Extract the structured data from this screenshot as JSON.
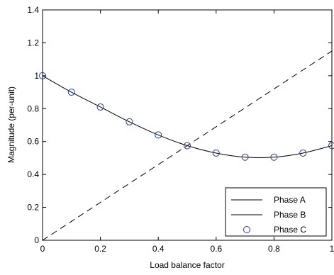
{
  "chart_data": {
    "type": "line",
    "title": "",
    "xlabel": "Load balance factor",
    "ylabel": "Magnitude (per-unit)",
    "xlim": [
      0,
      1
    ],
    "ylim": [
      0,
      1.4
    ],
    "x_ticks": [
      0,
      0.2,
      0.4,
      0.6,
      0.8,
      1
    ],
    "x_tick_labels": [
      "0",
      "0.2",
      "0.4",
      "0.6",
      "0.8",
      "1"
    ],
    "y_ticks": [
      0,
      0.2,
      0.4,
      0.6,
      0.8,
      1,
      1.2,
      1.4
    ],
    "y_tick_labels": [
      "0",
      "0.2",
      "0.4",
      "0.6",
      "0.8",
      "1",
      "1.2",
      "1.4"
    ],
    "grid": false,
    "legend_position": "bottom-right",
    "x": [
      0,
      0.1,
      0.2,
      0.3,
      0.4,
      0.5,
      0.6,
      0.7,
      0.8,
      0.9,
      1.0
    ],
    "series": [
      {
        "name": "Phase A",
        "style": "dashed",
        "color": "#000000",
        "values": [
          0,
          0.115,
          0.23,
          0.345,
          0.46,
          0.575,
          0.69,
          0.805,
          0.92,
          1.035,
          1.15
        ]
      },
      {
        "name": "Phase B",
        "style": "solid",
        "color": "#000000",
        "values": [
          1.0,
          0.9,
          0.81,
          0.72,
          0.64,
          0.575,
          0.53,
          0.505,
          0.505,
          0.53,
          0.575
        ]
      },
      {
        "name": "Phase C",
        "style": "markers",
        "marker": "circle",
        "color": "#1f3f9f",
        "values": [
          1.0,
          0.9,
          0.81,
          0.72,
          0.64,
          0.575,
          0.53,
          0.505,
          0.505,
          0.53,
          0.575
        ]
      }
    ]
  }
}
